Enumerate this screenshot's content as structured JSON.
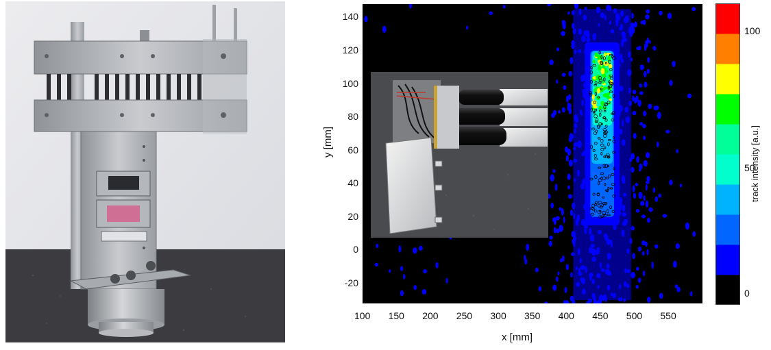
{
  "chart_data": {
    "type": "heatmap",
    "xlabel": "x [mm]",
    "ylabel": "y [mm]",
    "xlim": [
      100,
      600
    ],
    "ylim": [
      -32,
      148
    ],
    "x_ticks": [
      "100",
      "150",
      "200",
      "250",
      "300",
      "350",
      "400",
      "450",
      "500",
      "550"
    ],
    "y_ticks": [
      "-20",
      "0",
      "20",
      "40",
      "60",
      "80",
      "100",
      "120",
      "140"
    ],
    "colorbar": {
      "label": "track intensity [a.u.]",
      "ticks": [
        "100",
        "50",
        "0"
      ],
      "range": [
        0,
        110
      ],
      "levels": [
        "#000000",
        "#0000ff",
        "#0066ff",
        "#00b3ff",
        "#00ffcc",
        "#00ff99",
        "#00ff00",
        "#ffff00",
        "#ff8000",
        "#ff0000"
      ]
    },
    "hotspot": {
      "x_range": [
        435,
        470
      ],
      "y_range": [
        20,
        120
      ],
      "peak_intensity": 100
    }
  }
}
